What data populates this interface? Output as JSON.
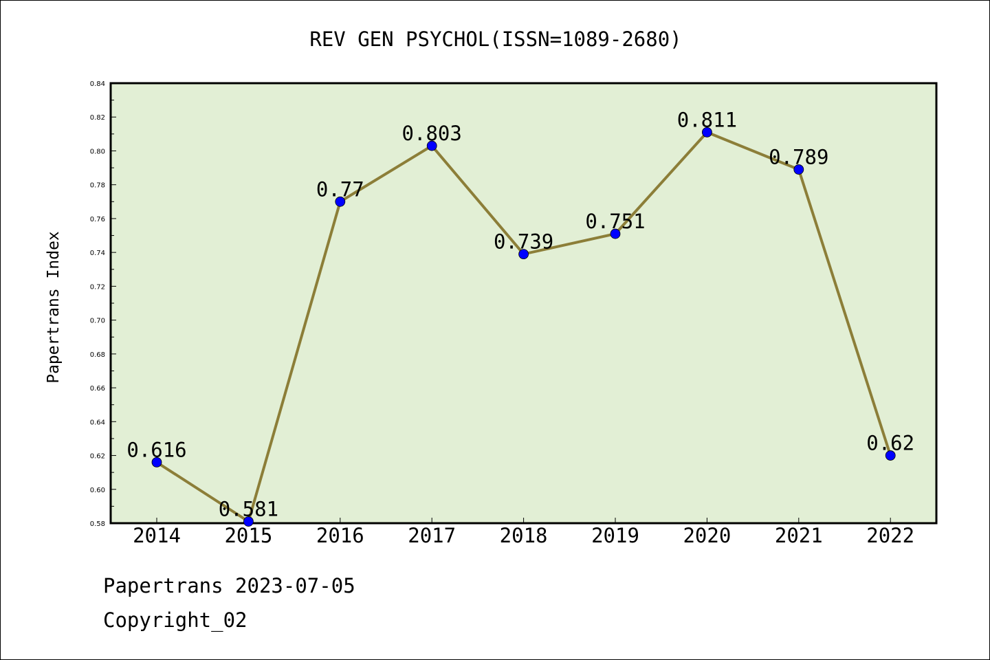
{
  "colors": {
    "plot_bg": "#e2efd5",
    "line": "#8c7e38",
    "marker": "#0000ff",
    "frame": "#000000"
  },
  "chart_data": {
    "type": "line",
    "title": "REV GEN PSYCHOL(ISSN=1089-2680)",
    "ylabel": "Papertrans Index",
    "xlabel": "",
    "categories": [
      "2014",
      "2015",
      "2016",
      "2017",
      "2018",
      "2019",
      "2020",
      "2021",
      "2022"
    ],
    "values": [
      0.616,
      0.581,
      0.77,
      0.803,
      0.739,
      0.751,
      0.811,
      0.789,
      0.62
    ],
    "data_labels": [
      "0.616",
      "0.581",
      "0.77",
      "0.803",
      "0.739",
      "0.751",
      "0.811",
      "0.789",
      "0.62"
    ],
    "ylim": [
      0.58,
      0.84
    ],
    "yticks": [
      "0.58",
      "0.60",
      "0.62",
      "0.64",
      "0.66",
      "0.68",
      "0.70",
      "0.72",
      "0.74",
      "0.76",
      "0.78",
      "0.80",
      "0.82",
      "0.84"
    ],
    "grid": false,
    "legend": "none"
  },
  "footer": {
    "line1": "Papertrans 2023-07-05",
    "line2": "Copyright_02"
  }
}
